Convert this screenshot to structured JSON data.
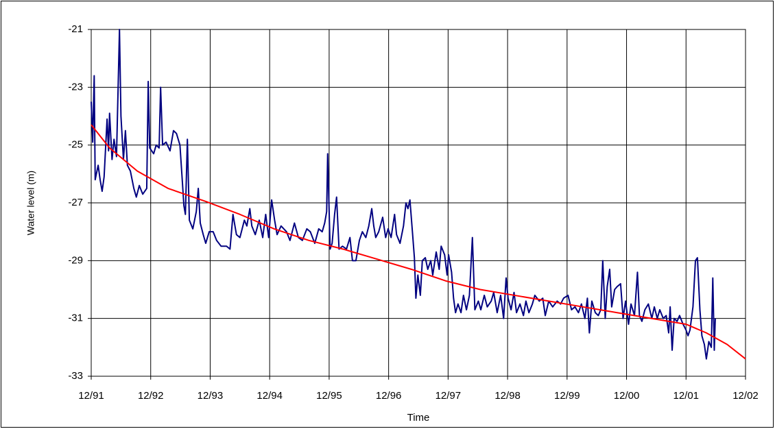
{
  "chart_data": {
    "type": "line",
    "x_label": "Time",
    "y_label": "Water level (m)",
    "xlim": [
      0,
      132
    ],
    "xticks": [
      {
        "value": 0,
        "label": "12/91"
      },
      {
        "value": 12,
        "label": "12/92"
      },
      {
        "value": 24,
        "label": "12/93"
      },
      {
        "value": 36,
        "label": "12/94"
      },
      {
        "value": 48,
        "label": "12/95"
      },
      {
        "value": 60,
        "label": "12/96"
      },
      {
        "value": 72,
        "label": "12/97"
      },
      {
        "value": 84,
        "label": "12/98"
      },
      {
        "value": 96,
        "label": "12/99"
      },
      {
        "value": 108,
        "label": "12/00"
      },
      {
        "value": 120,
        "label": "12/01"
      },
      {
        "value": 132,
        "label": "12/02"
      }
    ],
    "ylim": [
      -33,
      -21
    ],
    "yticks": [
      -33,
      -31,
      -29,
      -27,
      -25,
      -23,
      -21
    ],
    "grid": true,
    "series": [
      {
        "color": "#000080",
        "x": [
          0,
          0.3,
          0.6,
          0.8,
          1.4,
          1.8,
          2.2,
          2.6,
          3.2,
          3.5,
          3.7,
          4.2,
          4.6,
          5.1,
          5.7,
          6.0,
          6.5,
          6.9,
          7.3,
          7.9,
          8.6,
          9.1,
          9.7,
          10.4,
          11.2,
          11.5,
          11.8,
          12.2,
          12.6,
          13.1,
          13.7,
          14.0,
          14.4,
          15.1,
          15.9,
          16.6,
          17.2,
          17.9,
          18.4,
          18.7,
          19.0,
          19.4,
          19.8,
          20.5,
          21.2,
          21.6,
          22.0,
          22.6,
          23.1,
          23.8,
          24.6,
          25.3,
          26.2,
          27.3,
          28.0,
          28.6,
          29.3,
          30.0,
          30.9,
          31.4,
          32.0,
          32.4,
          33.1,
          33.9,
          34.6,
          35.2,
          35.8,
          36.4,
          37.0,
          37.5,
          38.3,
          39.4,
          40.1,
          41.0,
          41.8,
          42.6,
          43.5,
          44.2,
          45.1,
          45.9,
          46.6,
          47.1,
          47.5,
          47.7,
          48.2,
          48.6,
          49.1,
          49.5,
          50.0,
          50.7,
          51.5,
          52.2,
          52.7,
          53.4,
          54.1,
          54.7,
          55.4,
          56.0,
          56.6,
          57.0,
          57.4,
          58.0,
          58.8,
          59.4,
          59.9,
          60.5,
          61.2,
          61.6,
          62.3,
          63.0,
          63.5,
          63.9,
          64.3,
          64.8,
          65.2,
          65.5,
          65.9,
          66.4,
          66.8,
          67.4,
          67.9,
          68.5,
          68.9,
          69.6,
          70.2,
          70.6,
          71.3,
          71.8,
          72.1,
          72.7,
          73.1,
          73.5,
          74.0,
          74.6,
          75.1,
          75.7,
          76.3,
          76.9,
          77.4,
          78.1,
          78.6,
          79.3,
          79.9,
          80.7,
          81.2,
          81.9,
          82.6,
          83.2,
          83.7,
          84.1,
          84.7,
          85.3,
          85.8,
          86.5,
          87.2,
          87.7,
          88.3,
          89.0,
          89.5,
          90.4,
          91.1,
          91.6,
          92.3,
          93.1,
          94.0,
          94.7,
          95.3,
          96.2,
          96.9,
          97.6,
          98.3,
          98.9,
          99.6,
          100.1,
          100.5,
          101.0,
          101.7,
          102.3,
          102.8,
          103.2,
          103.7,
          104.1,
          104.6,
          105.0,
          105.6,
          106.1,
          106.8,
          107.3,
          107.8,
          108.4,
          108.9,
          109.6,
          110.2,
          110.6,
          111.1,
          111.7,
          112.4,
          113.1,
          113.6,
          114.2,
          114.7,
          115.4,
          116.0,
          116.5,
          116.8,
          117.2,
          117.6,
          118.2,
          118.7,
          119.4,
          120.0,
          120.4,
          120.8,
          121.4,
          121.9,
          122.3,
          122.8,
          123.2,
          123.7,
          124.1,
          124.6,
          125.1,
          125.4,
          125.7,
          125.9
        ],
        "values": [
          -23.5,
          -24.9,
          -22.6,
          -26.2,
          -25.7,
          -26.2,
          -26.6,
          -26.1,
          -24.1,
          -25.2,
          -23.9,
          -25.5,
          -24.8,
          -25.4,
          -21,
          -24,
          -25.5,
          -24.5,
          -25.7,
          -25.9,
          -26.5,
          -26.8,
          -26.4,
          -26.7,
          -26.5,
          -22.8,
          -25.1,
          -25.2,
          -25.3,
          -25.0,
          -25.1,
          -23.0,
          -25.0,
          -24.9,
          -25.2,
          -24.5,
          -24.6,
          -25.0,
          -26.3,
          -27.1,
          -27.4,
          -24.8,
          -27.6,
          -27.9,
          -27.3,
          -26.5,
          -27.7,
          -28.1,
          -28.4,
          -28.0,
          -28.0,
          -28.3,
          -28.5,
          -28.5,
          -28.6,
          -27.4,
          -28.1,
          -28.2,
          -27.6,
          -27.8,
          -27.2,
          -27.8,
          -28.1,
          -27.6,
          -28.2,
          -27.4,
          -28.2,
          -26.9,
          -27.6,
          -28.1,
          -27.8,
          -28.0,
          -28.3,
          -27.7,
          -28.2,
          -28.3,
          -27.9,
          -28.0,
          -28.4,
          -27.9,
          -28.0,
          -27.7,
          -27.3,
          -25.3,
          -28.6,
          -28.4,
          -27.4,
          -26.8,
          -28.6,
          -28.5,
          -28.6,
          -28.2,
          -29.0,
          -29.0,
          -28.3,
          -28.0,
          -28.2,
          -27.8,
          -27.2,
          -27.8,
          -28.2,
          -28.0,
          -27.5,
          -28.2,
          -27.9,
          -28.2,
          -27.4,
          -28.1,
          -28.4,
          -27.8,
          -27.0,
          -27.2,
          -26.9,
          -28.0,
          -28.9,
          -30.3,
          -29.5,
          -30.2,
          -29.0,
          -28.9,
          -29.3,
          -29.0,
          -29.5,
          -28.7,
          -29.3,
          -28.5,
          -28.8,
          -29.5,
          -28.8,
          -29.4,
          -30.3,
          -30.8,
          -30.5,
          -30.8,
          -30.2,
          -30.7,
          -30.2,
          -28.2,
          -30.7,
          -30.4,
          -30.7,
          -30.2,
          -30.6,
          -30.4,
          -30.1,
          -30.8,
          -30.2,
          -31.0,
          -29.6,
          -30.3,
          -30.7,
          -30.1,
          -30.8,
          -30.5,
          -30.9,
          -30.4,
          -30.8,
          -30.5,
          -30.2,
          -30.4,
          -30.3,
          -30.9,
          -30.4,
          -30.6,
          -30.4,
          -30.5,
          -30.3,
          -30.2,
          -30.7,
          -30.6,
          -30.8,
          -30.5,
          -31.0,
          -30.3,
          -31.5,
          -30.4,
          -30.8,
          -30.9,
          -30.7,
          -29.0,
          -31.0,
          -29.9,
          -29.3,
          -30.6,
          -30.0,
          -29.9,
          -29.8,
          -31.0,
          -30.4,
          -31.2,
          -30.5,
          -30.9,
          -29.4,
          -30.9,
          -31.1,
          -30.7,
          -30.5,
          -31.0,
          -30.6,
          -31.0,
          -30.7,
          -31.0,
          -30.9,
          -31.5,
          -30.6,
          -32.1,
          -31.0,
          -31.1,
          -30.9,
          -31.2,
          -31.4,
          -31.6,
          -31.4,
          -30.6,
          -29.0,
          -28.9,
          -30.7,
          -31.6,
          -31.9,
          -32.4,
          -31.8,
          -32.0,
          -29.6,
          -32.1,
          -31.0
        ]
      },
      {
        "color": "#ff0000",
        "x": [
          0,
          3.7,
          9.3,
          15.5,
          23.1,
          30.0,
          36.9,
          43.9,
          50.8,
          57.7,
          64.6,
          71.5,
          78.5,
          85.4,
          92.3,
          99.2,
          106.1,
          113.0,
          120.0,
          124.1,
          128.3,
          132
        ],
        "values": [
          -24.3,
          -25.1,
          -25.9,
          -26.5,
          -26.95,
          -27.4,
          -27.9,
          -28.3,
          -28.6,
          -28.95,
          -29.3,
          -29.7,
          -30.0,
          -30.2,
          -30.4,
          -30.6,
          -30.8,
          -31.0,
          -31.2,
          -31.5,
          -31.9,
          -32.4
        ]
      }
    ]
  }
}
